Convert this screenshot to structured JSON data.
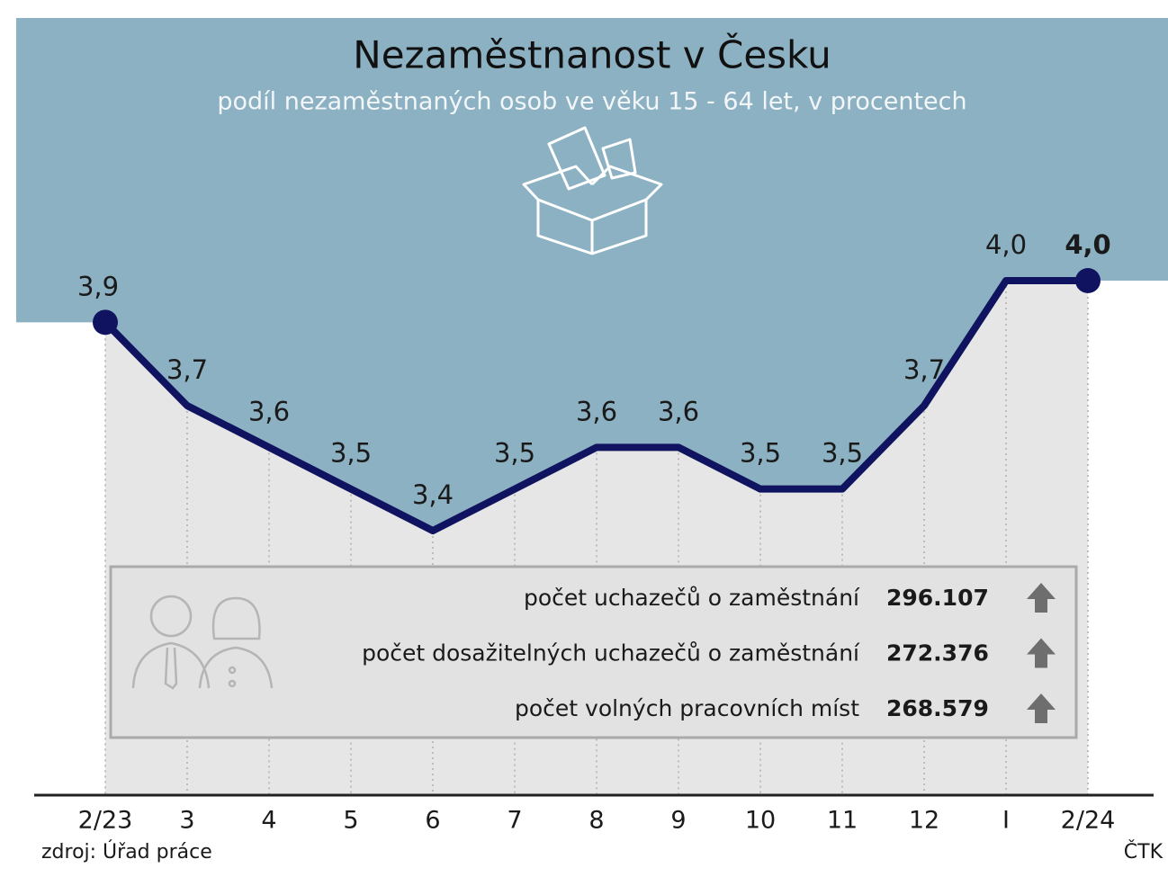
{
  "chart_data": {
    "type": "line",
    "title": "Nezaměstnanost v Česku",
    "subtitle": "podíl nezaměstnaných osob ve věku 15 - 64 let, v procentech",
    "categories": [
      "2/23",
      "3",
      "4",
      "5",
      "6",
      "7",
      "8",
      "9",
      "10",
      "11",
      "12",
      "I",
      "2/24"
    ],
    "series": [
      {
        "color": "#10135f",
        "values": [
          3.9,
          3.7,
          3.6,
          3.5,
          3.4,
          3.5,
          3.6,
          3.6,
          3.5,
          3.5,
          3.7,
          4.0,
          4.0
        ],
        "value_labels": [
          "3,9",
          "3,7",
          "3,6",
          "3,5",
          "3,4",
          "3,5",
          "3,6",
          "3,6",
          "3,5",
          "3,5",
          "3,7",
          "4,0",
          "4,0"
        ]
      }
    ],
    "info_box": {
      "rows": [
        {
          "label": "počet uchazečů o zaměstnání",
          "value": "296.107"
        },
        {
          "label": "počet dosažitelných uchazečů o zaměstnání",
          "value": "272.376"
        },
        {
          "label": "počet volných pracovních míst",
          "value": "268.579"
        }
      ]
    },
    "source": "zdroj: Úřad práce",
    "credit": "ČTK"
  }
}
